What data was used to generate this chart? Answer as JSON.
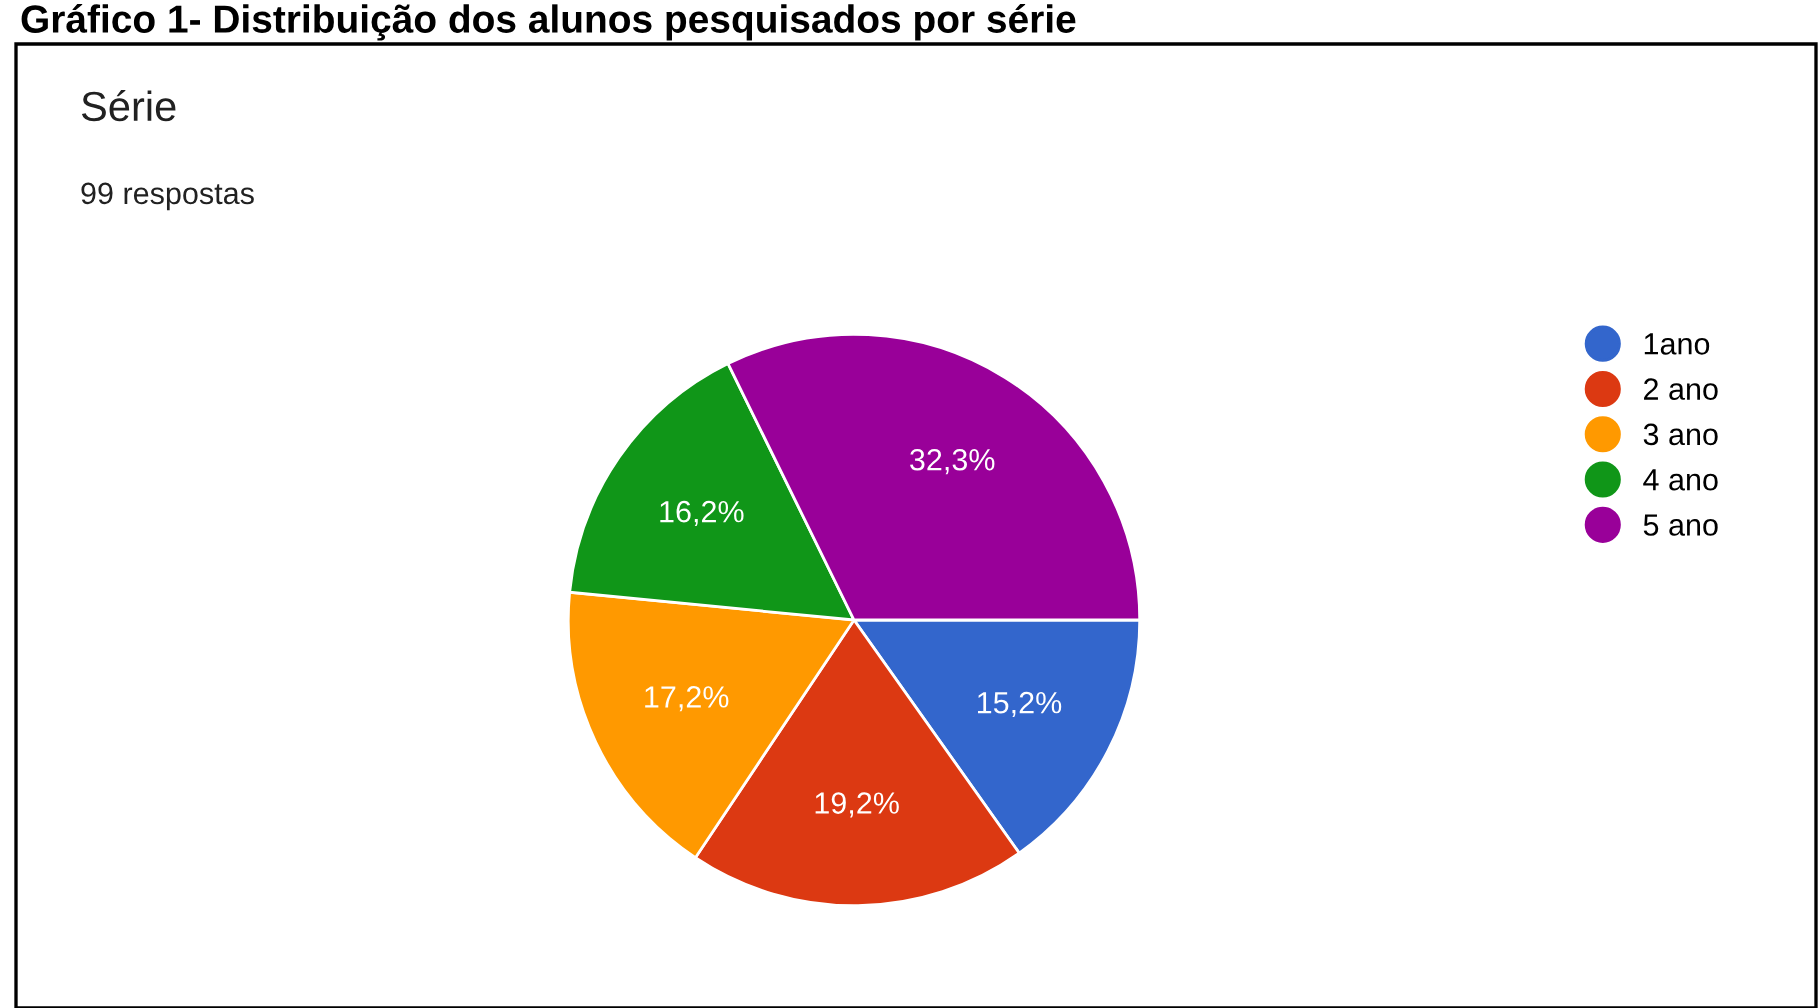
{
  "chart_data": {
    "type": "pie",
    "title": "Série",
    "subtitle": "99 respostas",
    "annotations": [
      "Gráfico 1- Distribuição dos alunos pesquisados por série"
    ],
    "categories": [
      "1ano",
      "2 ano",
      "3 ano",
      "4 ano",
      "5 ano"
    ],
    "values": [
      15.2,
      19.2,
      17.2,
      16.2,
      32.3
    ],
    "value_labels": [
      "15,2%",
      "19,2%",
      "17,2%",
      "16,2%",
      "32,3%"
    ],
    "colors": [
      "#3366cc",
      "#dc3912",
      "#ff9900",
      "#109618",
      "#990099"
    ],
    "legend": "right"
  }
}
